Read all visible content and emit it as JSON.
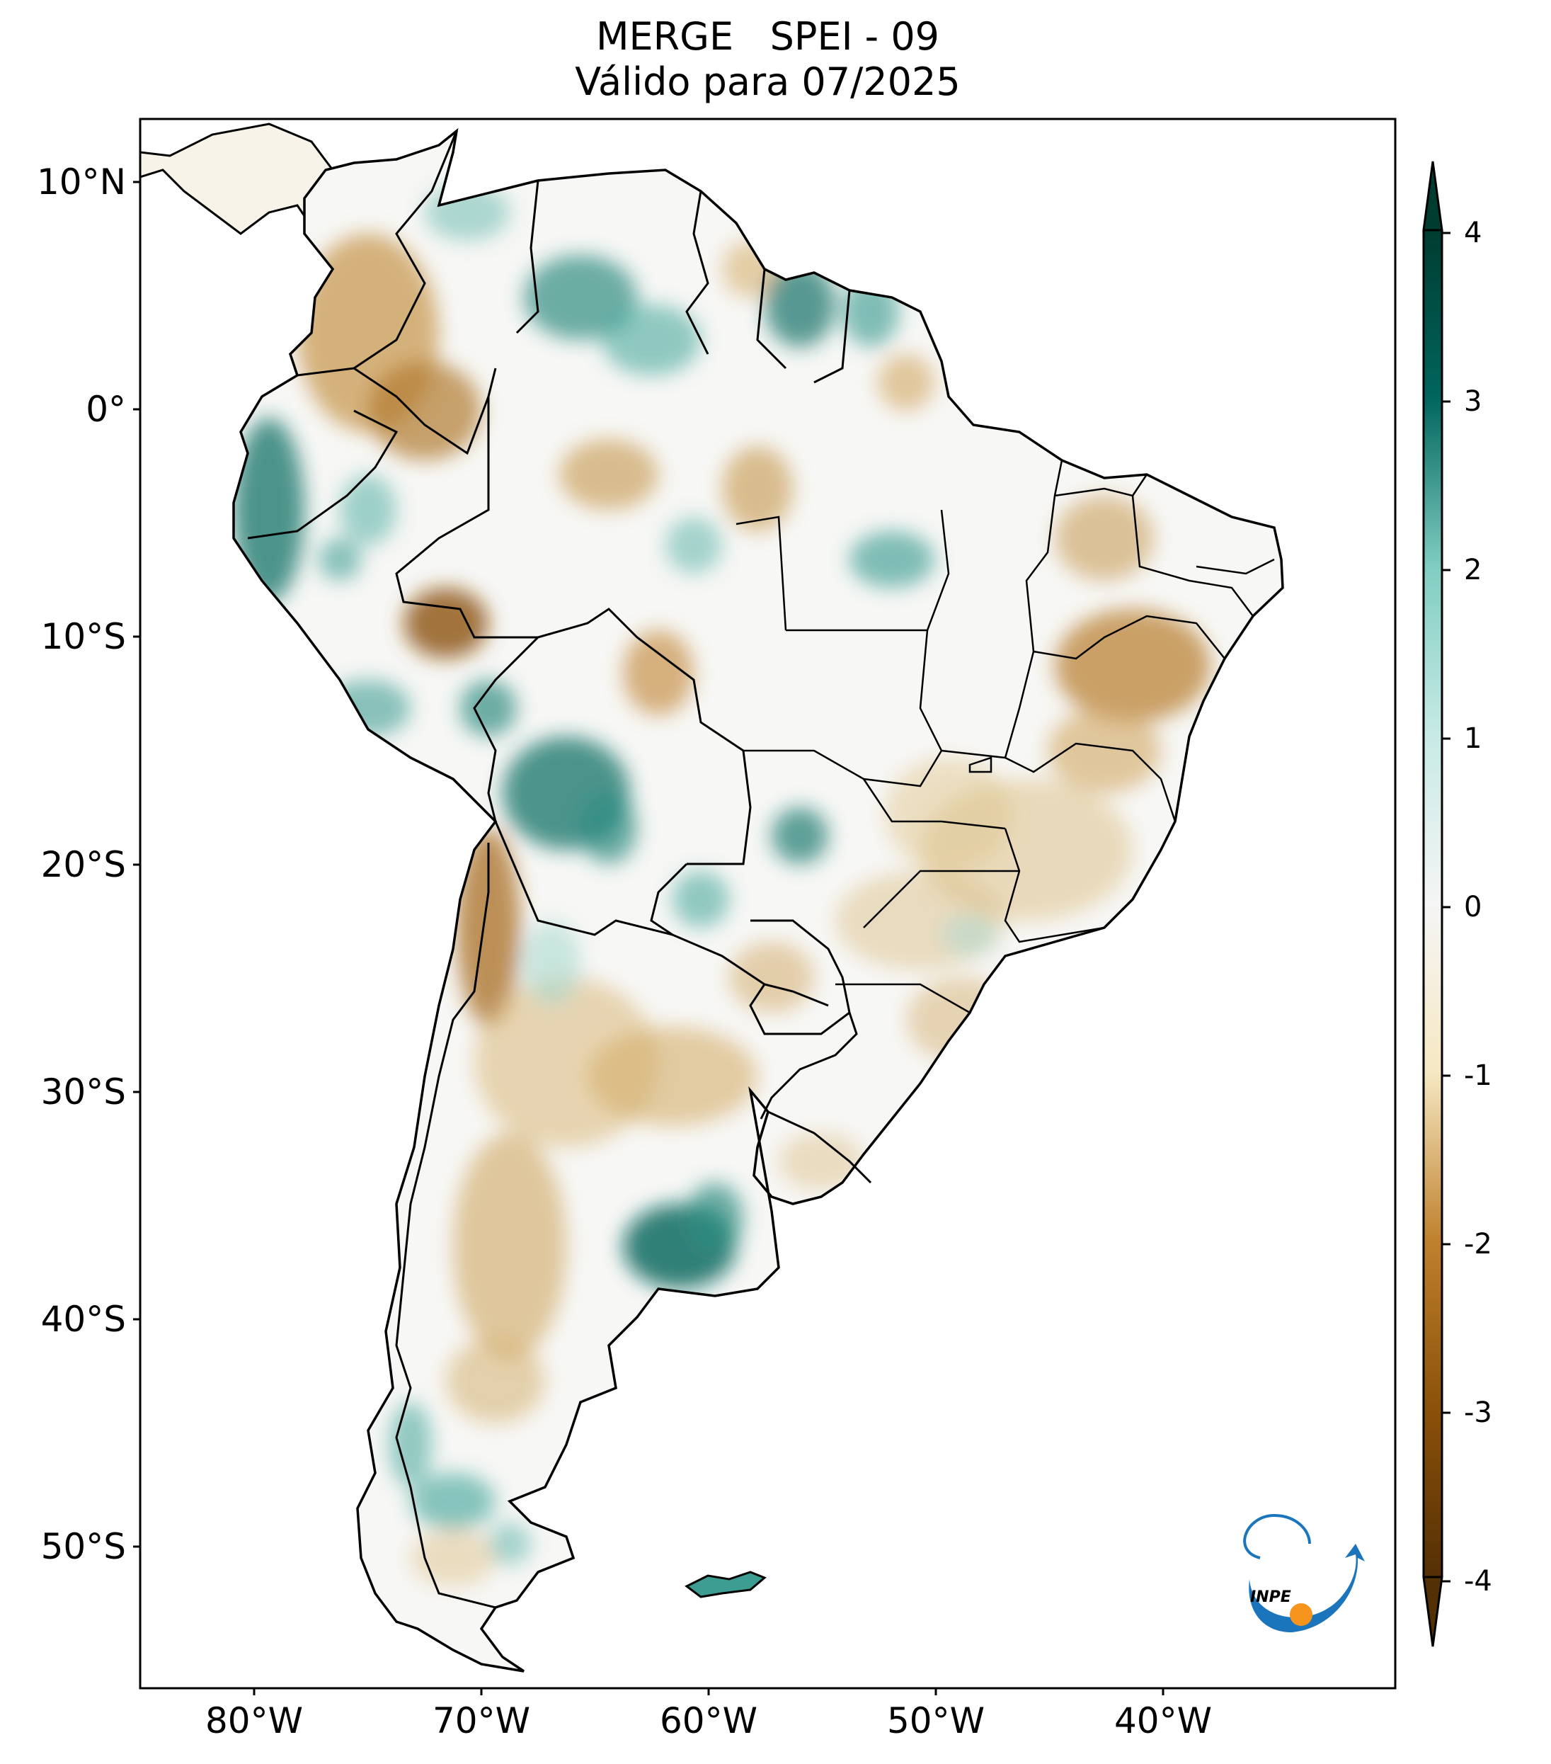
{
  "title": {
    "line1": "MERGE   SPEI - 09",
    "line2": "Válido para 07/2025"
  },
  "map": {
    "product": "SPEI",
    "accumulation_months": 9,
    "valid_period": "07/2025",
    "longitude_labels": [
      "80°W",
      "70°W",
      "60°W",
      "50°W",
      "40°W"
    ],
    "latitude_labels": [
      "10°N",
      "0°",
      "10°S",
      "20°S",
      "30°S",
      "40°S",
      "50°S"
    ]
  },
  "colorbar": {
    "ticks": [
      "4",
      "3",
      "2",
      "1",
      "0",
      "-1",
      "-2",
      "-3",
      "-4"
    ],
    "min": -4,
    "max": 4,
    "colors": {
      "wet_extreme": "#003c30",
      "wet": "#35978f",
      "neutral": "#f5f5f5",
      "dry": "#bf812d",
      "dry_extreme": "#543005"
    }
  },
  "logo": {
    "text": "INPE",
    "colors": {
      "blue": "#1a75bc",
      "orange": "#f7941d"
    }
  }
}
